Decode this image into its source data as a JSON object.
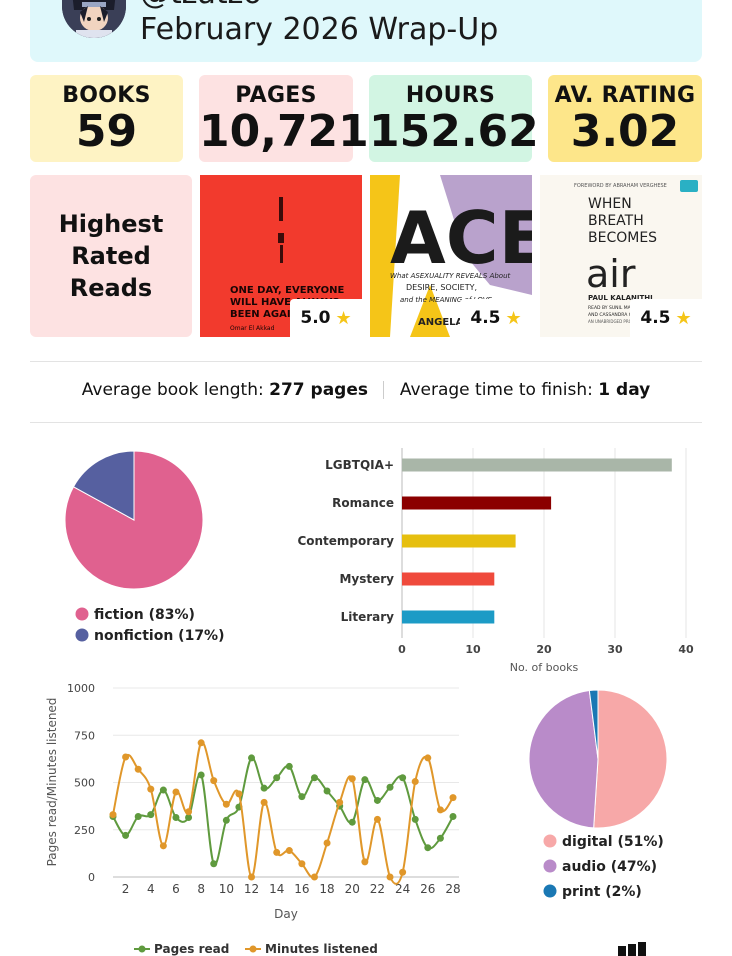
{
  "header": {
    "username": "@tzatzo",
    "title": "February 2026 Wrap-Up"
  },
  "stats": [
    {
      "label": "BOOKS",
      "value": "59",
      "color": "#fef3c4"
    },
    {
      "label": "PAGES",
      "value": "10,721",
      "color": "#fde2e2"
    },
    {
      "label": "HOURS",
      "value": "152.62",
      "color": "#d2f5e3"
    },
    {
      "label": "AV. RATING",
      "value": "3.02",
      "color": "#fde68a"
    }
  ],
  "highest_rated": {
    "heading_lines": [
      "Highest",
      "Rated",
      "Reads"
    ],
    "books": [
      {
        "cover_lines": [
          "ONE DAY, EVERYONE",
          "WILL HAVE ALWAYS",
          "BEEN AGAINST THIS"
        ],
        "author": "Omar El Akkad",
        "rating": "5.0",
        "colors": [
          "#f2392c",
          "#d42b22"
        ]
      },
      {
        "cover_title": "ACE",
        "cover_sub": [
          "What ASEXUALITY REVEALS About",
          "DESIRE, SOCIETY,",
          "and the MEANING of LOVE"
        ],
        "author": "ANGELA CHEN",
        "rating": "4.5",
        "colors": [
          "#f5c518",
          "#b9a2cc"
        ]
      },
      {
        "cover_kicker": "FOREWORD BY ABRAHAM VERGHESE",
        "cover_title_lines": [
          "WHEN",
          "BREATH",
          "BECOMES"
        ],
        "cover_word": "air",
        "author": "PAUL KALANITHI",
        "cover_credit": [
          "READ BY SUNIL MALHOTRA",
          "AND CASSANDRA CAMPBELL"
        ],
        "cover_footer": "AN UNABRIDGED PRODUCTION",
        "rating": "4.5",
        "colors": [
          "#faf7f0",
          "#222222"
        ]
      }
    ]
  },
  "averages": {
    "length_label": "Average book length:",
    "length_value": "277 pages",
    "time_label": "Average time to finish:",
    "time_value": "1 day"
  },
  "chart_data": [
    {
      "type": "pie",
      "slices": [
        {
          "label": "fiction (83%)",
          "value": 83,
          "color": "#e0618f"
        },
        {
          "label": "nonfiction (17%)",
          "value": 17,
          "color": "#5660a0"
        }
      ]
    },
    {
      "type": "bar",
      "orientation": "horizontal",
      "categories": [
        "LGBTQIA+",
        "Romance",
        "Contemporary",
        "Mystery",
        "Literary"
      ],
      "values": [
        38,
        21,
        16,
        13,
        13
      ],
      "colors": [
        "#a9b6a8",
        "#8b0000",
        "#e6bf0f",
        "#ef4a3c",
        "#1c9bc6"
      ],
      "xlabel": "No. of books",
      "xlim": [
        0,
        40
      ],
      "xticks": [
        0,
        10,
        20,
        30,
        40
      ],
      "grid": true
    },
    {
      "type": "line",
      "x": [
        1,
        2,
        3,
        4,
        5,
        6,
        7,
        8,
        9,
        10,
        11,
        12,
        13,
        14,
        15,
        16,
        17,
        18,
        19,
        20,
        21,
        22,
        23,
        24,
        25,
        26,
        27,
        28
      ],
      "xticks": [
        2,
        4,
        6,
        8,
        10,
        12,
        14,
        16,
        18,
        20,
        22,
        24,
        26,
        28
      ],
      "series": [
        {
          "name": "Pages read",
          "color": "#5f9a3e",
          "values": [
            320,
            220,
            320,
            330,
            460,
            315,
            315,
            540,
            70,
            300,
            370,
            630,
            470,
            525,
            585,
            425,
            525,
            455,
            375,
            290,
            515,
            405,
            475,
            525,
            305,
            155,
            205,
            320
          ]
        },
        {
          "name": "Minutes listened",
          "color": "#e0972a",
          "values": [
            330,
            635,
            570,
            465,
            165,
            450,
            345,
            710,
            510,
            385,
            440,
            0,
            395,
            130,
            140,
            70,
            0,
            180,
            395,
            520,
            80,
            305,
            0,
            25,
            505,
            630,
            355,
            420
          ]
        }
      ],
      "xlabel": "Day",
      "ylabel": "Pages read/Minutes listened",
      "ylim": [
        0,
        1000
      ],
      "yticks": [
        0,
        250,
        500,
        750,
        1000
      ],
      "grid": true,
      "legend": "bottom"
    },
    {
      "type": "pie",
      "slices": [
        {
          "label": "digital (51%)",
          "value": 51,
          "color": "#f7a8a8"
        },
        {
          "label": "audio (47%)",
          "value": 47,
          "color": "#b98bc9"
        },
        {
          "label": "print (2%)",
          "value": 2,
          "color": "#1a78b4"
        }
      ]
    }
  ]
}
